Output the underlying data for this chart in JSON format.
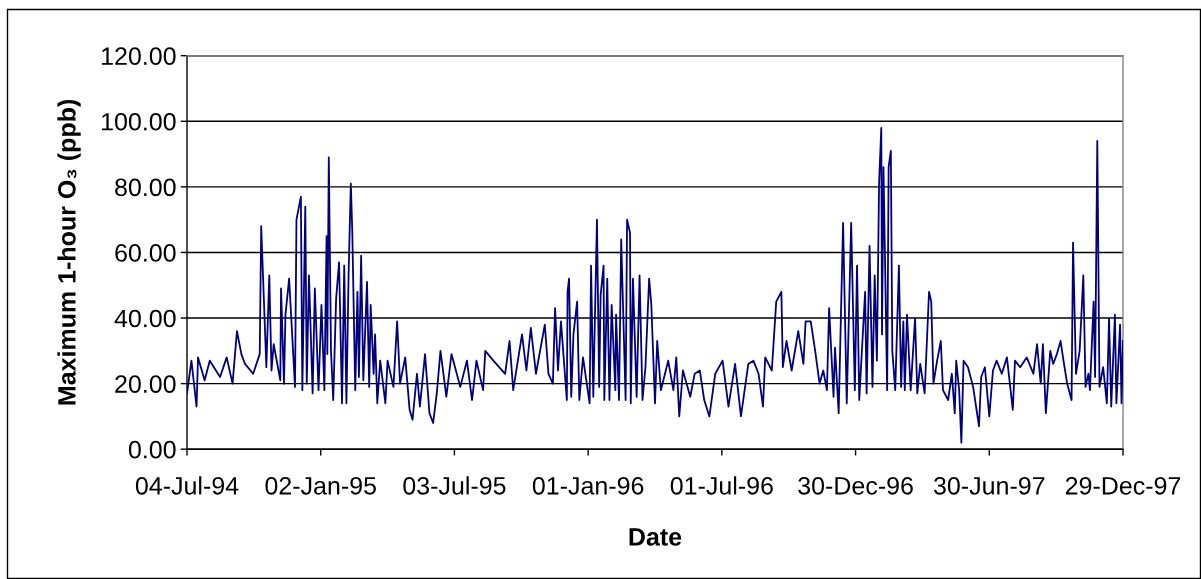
{
  "chart_data": {
    "type": "line",
    "xlabel": "Date",
    "ylabel": "Maximum 1-hour O₃ (ppb)",
    "color": "#000080",
    "grid": "y",
    "xlim": [
      "1994-07-04",
      "1997-12-29"
    ],
    "xticks": [
      {
        "value": "1994-07-04",
        "label": "04-Jul-94"
      },
      {
        "value": "1995-01-02",
        "label": "02-Jan-95"
      },
      {
        "value": "1995-07-03",
        "label": "03-Jul-95"
      },
      {
        "value": "1996-01-01",
        "label": "01-Jan-96"
      },
      {
        "value": "1996-07-01",
        "label": "01-Jul-96"
      },
      {
        "value": "1996-12-30",
        "label": "30-Dec-96"
      },
      {
        "value": "1997-06-30",
        "label": "30-Jun-97"
      },
      {
        "value": "1997-12-29",
        "label": "29-Dec-97"
      }
    ],
    "ylim": [
      0,
      120
    ],
    "yticks": [
      {
        "value": 0,
        "label": "0.00"
      },
      {
        "value": 20,
        "label": "20.00"
      },
      {
        "value": 40,
        "label": "40.00"
      },
      {
        "value": 60,
        "label": "60.00"
      },
      {
        "value": 80,
        "label": "80.00"
      },
      {
        "value": 100,
        "label": "100.00"
      },
      {
        "value": 120,
        "label": "120.00"
      }
    ],
    "x": [
      "1994-07-04",
      "1994-07-10",
      "1994-07-17",
      "1994-07-19",
      "1994-07-28",
      "1994-08-04",
      "1994-08-18",
      "1994-08-27",
      "1994-09-04",
      "1994-09-10",
      "1994-09-16",
      "1994-09-21",
      "1994-10-02",
      "1994-10-11",
      "1994-10-13",
      "1994-10-20",
      "1994-10-24",
      "1994-10-27",
      "1994-10-30",
      "1994-11-08",
      "1994-11-09",
      "1994-11-13",
      "1994-11-15",
      "1994-11-20",
      "1994-11-28",
      "1994-11-30",
      "1994-12-06",
      "1994-12-08",
      "1994-12-12",
      "1994-12-14",
      "1994-12-17",
      "1994-12-22",
      "1994-12-25",
      "1994-12-30",
      "1995-01-03",
      "1995-01-07",
      "1995-01-10",
      "1995-01-11",
      "1995-01-13",
      "1995-01-16",
      "1995-01-19",
      "1995-01-23",
      "1995-01-27",
      "1995-01-31",
      "1995-02-03",
      "1995-02-06",
      "1995-02-09",
      "1995-02-12",
      "1995-02-14",
      "1995-02-18",
      "1995-02-21",
      "1995-02-23",
      "1995-02-26",
      "1995-03-01",
      "1995-03-06",
      "1995-03-09",
      "1995-03-11",
      "1995-03-15",
      "1995-03-17",
      "1995-03-20",
      "1995-03-24",
      "1995-03-31",
      "1995-04-03",
      "1995-04-11",
      "1995-04-16",
      "1995-04-20",
      "1995-04-27",
      "1995-05-03",
      "1995-05-07",
      "1995-05-13",
      "1995-05-17",
      "1995-05-24",
      "1995-05-30",
      "1995-06-04",
      "1995-06-09",
      "1995-06-14",
      "1995-06-22",
      "1995-06-29",
      "1995-07-11",
      "1995-07-20",
      "1995-07-27",
      "1995-08-02",
      "1995-08-11",
      "1995-08-14",
      "1995-08-25",
      "1995-09-10",
      "1995-09-16",
      "1995-09-21",
      "1995-10-03",
      "1995-10-09",
      "1995-10-15",
      "1995-10-22",
      "1995-11-03",
      "1995-11-08",
      "1995-11-14",
      "1995-11-17",
      "1995-11-21",
      "1995-11-25",
      "1995-11-30",
      "1995-12-03",
      "1995-12-04",
      "1995-12-06",
      "1995-12-09",
      "1995-12-12",
      "1995-12-17",
      "1995-12-20",
      "1995-12-25",
      "1996-01-03",
      "1996-01-05",
      "1996-01-08",
      "1996-01-13",
      "1996-01-16",
      "1996-01-18",
      "1996-01-22",
      "1996-01-23",
      "1996-01-27",
      "1996-01-30",
      "1996-02-02",
      "1996-02-07",
      "1996-02-08",
      "1996-02-12",
      "1996-02-15",
      "1996-02-21",
      "1996-02-23",
      "1996-02-27",
      "1996-02-28",
      "1996-03-02",
      "1996-03-07",
      "1996-03-11",
      "1996-03-15",
      "1996-03-19",
      "1996-03-24",
      "1996-03-27",
      "1996-04-01",
      "1996-04-04",
      "1996-04-09",
      "1996-04-19",
      "1996-04-26",
      "1996-04-30",
      "1996-05-04",
      "1996-05-09",
      "1996-05-19",
      "1996-05-25",
      "1996-06-01",
      "1996-06-07",
      "1996-06-14",
      "1996-06-22",
      "1996-07-02",
      "1996-07-10",
      "1996-07-19",
      "1996-07-27",
      "1996-08-06",
      "1996-08-13",
      "1996-08-20",
      "1996-08-26",
      "1996-08-29",
      "1996-09-07",
      "1996-09-13",
      "1996-09-20",
      "1996-09-22",
      "1996-09-27",
      "1996-10-04",
      "1996-10-13",
      "1996-10-20",
      "1996-10-23",
      "1996-10-30",
      "1996-11-05",
      "1996-11-11",
      "1996-11-16",
      "1996-11-21",
      "1996-11-24",
      "1996-11-30",
      "1996-12-02",
      "1996-12-07",
      "1996-12-13",
      "1996-12-18",
      "1996-12-24",
      "1996-12-29",
      "1997-01-01",
      "1997-01-04",
      "1997-01-12",
      "1997-01-14",
      "1997-01-18",
      "1997-01-22",
      "1997-01-25",
      "1997-01-28",
      "1997-01-31",
      "1997-02-03",
      "1997-02-04",
      "1997-02-06",
      "1997-02-11",
      "1997-02-13",
      "1997-02-16",
      "1997-02-18",
      "1997-02-22",
      "1997-02-27",
      "1997-03-02",
      "1997-03-05",
      "1997-03-07",
      "1997-03-10",
      "1997-03-15",
      "1997-03-21",
      "1997-03-24",
      "1997-03-28",
      "1997-04-03",
      "1997-04-09",
      "1997-04-12",
      "1997-04-15",
      "1997-04-20",
      "1997-04-25",
      "1997-04-28",
      "1997-05-05",
      "1997-05-10",
      "1997-05-14",
      "1997-05-16",
      "1997-05-20",
      "1997-05-23",
      "1997-05-26",
      "1997-06-01",
      "1997-06-08",
      "1997-06-16",
      "1997-06-19",
      "1997-06-24",
      "1997-06-30",
      "1997-07-05",
      "1997-07-10",
      "1997-07-17",
      "1997-07-24",
      "1997-08-01",
      "1997-08-04",
      "1997-08-11",
      "1997-08-20",
      "1997-08-29",
      "1997-09-03",
      "1997-09-08",
      "1997-09-11",
      "1997-09-15",
      "1997-09-21",
      "1997-09-25",
      "1997-09-30",
      "1997-10-05",
      "1997-10-09",
      "1997-10-14",
      "1997-10-20",
      "1997-10-22",
      "1997-10-26",
      "1997-10-31",
      "1997-11-05",
      "1997-11-08",
      "1997-11-12",
      "1997-11-14",
      "1997-11-19",
      "1997-11-21",
      "1997-11-24",
      "1997-11-27",
      "1997-12-02",
      "1997-12-07",
      "1997-12-10",
      "1997-12-13",
      "1997-12-18",
      "1997-12-20",
      "1997-12-25",
      "1997-12-27",
      "1997-12-29"
    ],
    "values": [
      17,
      27,
      13,
      28,
      21,
      27,
      22,
      28,
      20,
      36,
      29,
      26,
      23,
      29,
      68,
      25,
      53,
      24,
      32,
      21,
      49,
      20,
      41,
      52,
      19,
      70,
      77,
      18,
      74,
      20,
      53,
      17,
      49,
      18,
      44,
      18,
      65,
      29,
      89,
      30,
      15,
      46,
      57,
      14,
      56,
      14,
      54,
      81,
      66,
      18,
      48,
      22,
      59,
      21,
      51,
      19,
      44,
      23,
      35,
      14,
      27,
      14,
      27,
      19,
      39,
      20,
      28,
      12,
      9,
      23,
      13,
      29,
      11,
      8,
      17,
      30,
      16,
      29,
      19,
      27,
      15,
      27,
      18,
      30,
      27,
      23,
      33,
      18,
      35,
      24,
      37,
      23,
      38,
      23,
      20,
      43,
      24,
      39,
      24,
      15,
      48,
      52,
      16,
      35,
      45,
      15,
      28,
      14,
      56,
      16,
      70,
      19,
      47,
      56,
      15,
      52,
      15,
      44,
      18,
      41,
      15,
      64,
      15,
      70,
      66,
      14,
      52,
      16,
      53,
      15,
      25,
      52,
      44,
      14,
      33,
      18,
      27,
      18,
      28,
      10,
      24,
      16,
      23,
      24,
      15,
      10,
      23,
      27,
      13,
      26,
      10,
      26,
      27,
      23,
      13,
      28,
      24,
      45,
      48,
      25,
      33,
      24,
      36,
      26,
      39,
      39,
      30,
      20,
      24,
      18,
      43,
      16,
      31,
      11,
      69,
      14,
      69,
      18,
      56,
      15,
      48,
      17,
      62,
      19,
      53,
      27,
      81,
      98,
      35,
      86,
      18,
      86,
      91,
      30,
      18,
      56,
      19,
      39,
      18,
      41,
      18,
      40,
      17,
      26,
      17,
      48,
      45,
      20,
      27,
      33,
      18,
      15,
      23,
      11,
      27,
      18,
      2,
      27,
      25,
      19,
      7,
      22,
      25,
      10,
      24,
      27,
      23,
      28,
      12,
      27,
      25,
      28,
      23,
      32,
      20,
      32,
      11,
      30,
      26,
      29,
      33,
      27,
      20,
      15,
      63,
      23,
      30,
      53,
      19,
      23,
      18,
      45,
      22,
      94,
      19,
      25,
      14,
      40,
      13,
      41,
      14,
      38,
      14,
      33
    ]
  }
}
